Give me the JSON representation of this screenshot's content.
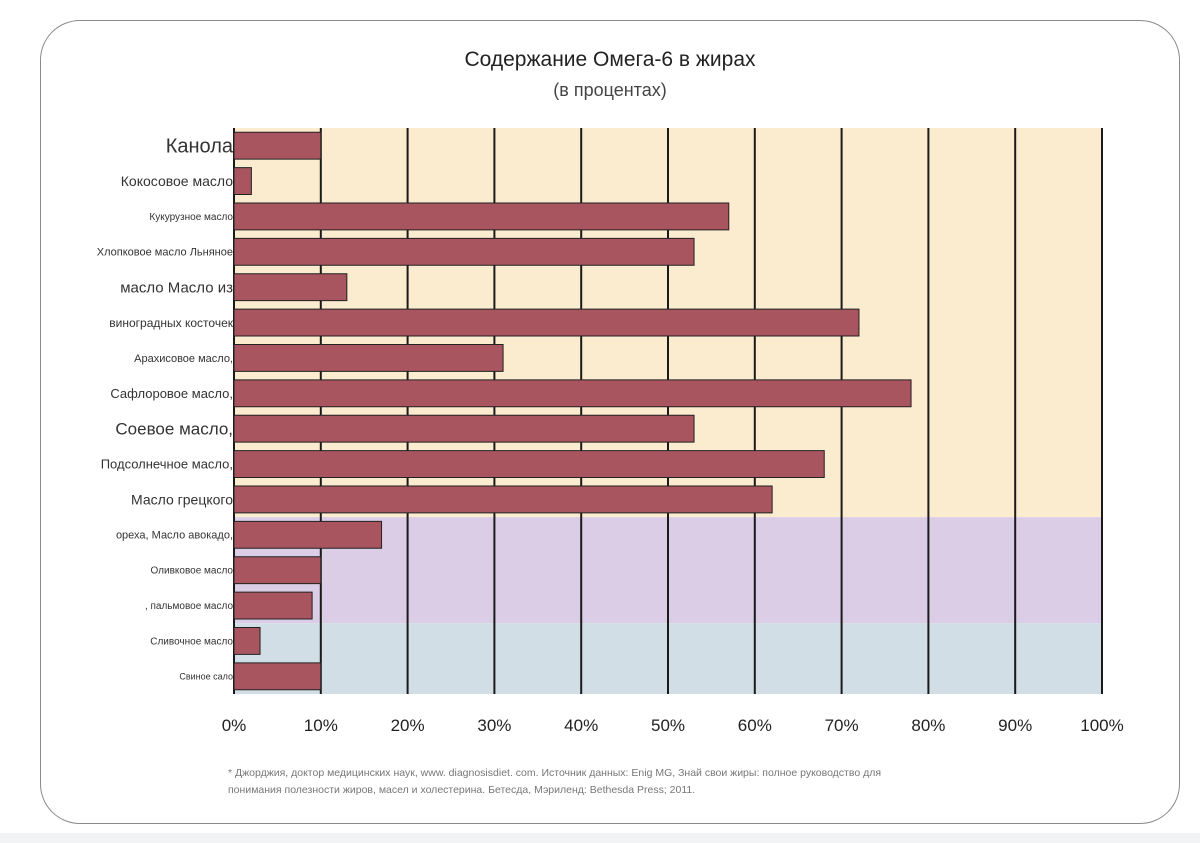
{
  "chart_data": {
    "type": "bar",
    "orientation": "horizontal",
    "title": "Содержание Омега-6 в жирах",
    "subtitle": "(в процентах)",
    "categories": [
      "Канола",
      "Кокосовое масло",
      "Кукурузное масло",
      "Хлопковое масло Льняное",
      "масло Масло из",
      "виноградных косточек",
      "Арахисовое масло,",
      "Сафлоровое масло,",
      "Соевое масло,",
      "Подсолнечное масло,",
      "Масло грецкого",
      "ореха, Масло авокадо,",
      "Оливковое масло",
      ", пальмовое масло",
      "Сливочное масло",
      "Свиное сало"
    ],
    "values": [
      10,
      2,
      57,
      53,
      13,
      72,
      31,
      78,
      53,
      68,
      62,
      17,
      10,
      9,
      3,
      10
    ],
    "xlim": [
      0,
      100
    ],
    "xticks": [
      "0%",
      "10%",
      "20%",
      "30%",
      "40%",
      "50%",
      "60%",
      "70%",
      "80%",
      "90%",
      "100%"
    ],
    "bar_color": "#a8555f",
    "background_bands": [
      {
        "from_category": 0,
        "to_category": 10,
        "color": "#fbebcf"
      },
      {
        "from_category": 11,
        "to_category": 13,
        "color": "#dccde7"
      },
      {
        "from_category": 14,
        "to_category": 15,
        "color": "#d2dee6"
      }
    ],
    "xlabel": "",
    "ylabel": ""
  },
  "footnote": {
    "line1": "* Джорджия, доктор медицинских наук, www. diagnosisdiet. com. Источник данных: Enig MG, Знай свои жиры: полное руководство для",
    "line2": "понимания полезности жиров, масел и холестерина. Бетесда, Мэриленд: Bethesda Press; 2011."
  }
}
